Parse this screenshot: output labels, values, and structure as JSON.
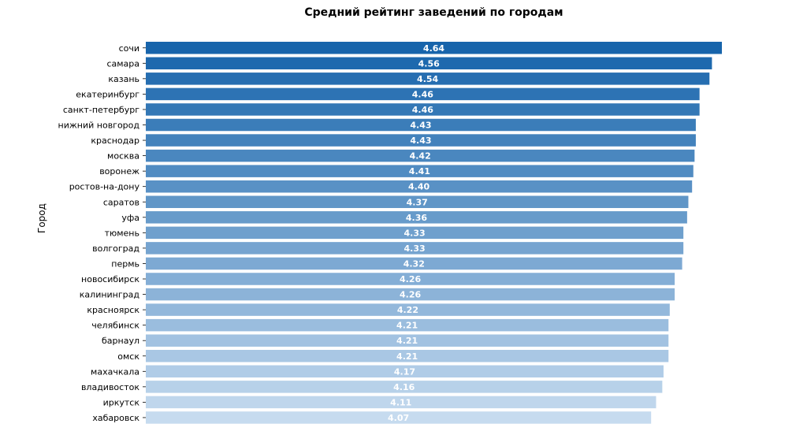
{
  "chart_data": {
    "type": "bar",
    "orientation": "horizontal",
    "title": "Средний рейтинг заведений по городам",
    "xlabel": "",
    "ylabel": "Город",
    "categories": [
      "сочи",
      "самара",
      "казань",
      "екатеринбург",
      "санкт-петербург",
      "нижний новгород",
      "краснодар",
      "москва",
      "воронеж",
      "ростов-на-дону",
      "саратов",
      "уфа",
      "тюмень",
      "волгоград",
      "пермь",
      "новосибирск",
      "калининград",
      "красноярск",
      "челябинск",
      "барнаул",
      "омск",
      "махачкала",
      "владивосток",
      "иркутск",
      "хабаровск"
    ],
    "values": [
      4.64,
      4.56,
      4.54,
      4.46,
      4.46,
      4.43,
      4.43,
      4.42,
      4.41,
      4.4,
      4.37,
      4.36,
      4.33,
      4.33,
      4.32,
      4.26,
      4.26,
      4.22,
      4.21,
      4.21,
      4.21,
      4.17,
      4.16,
      4.11,
      4.07
    ],
    "value_labels": [
      "4.64",
      "4.56",
      "4.54",
      "4.46",
      "4.46",
      "4.43",
      "4.43",
      "4.42",
      "4.41",
      "4.40",
      "4.37",
      "4.36",
      "4.33",
      "4.33",
      "4.32",
      "4.26",
      "4.26",
      "4.22",
      "4.21",
      "4.21",
      "4.21",
      "4.17",
      "4.16",
      "4.11",
      "4.07"
    ],
    "xlim": [
      0,
      4.64
    ],
    "grid": false,
    "colors": {
      "palette": "Blues_r",
      "dark": "#1764ab",
      "light": "#c6dbef",
      "label_text": "#ffffff",
      "tick_text": "#000000"
    }
  }
}
